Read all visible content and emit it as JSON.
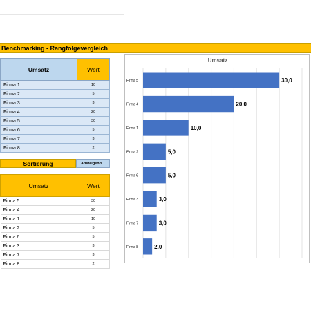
{
  "title": "Benchmarking - Rangfolgevergleich",
  "table1": {
    "header_name": "Umsatz",
    "header_value": "Wert",
    "rows": [
      {
        "name": "Firma 1",
        "value": "10"
      },
      {
        "name": "Firma 2",
        "value": "5"
      },
      {
        "name": "Firma 3",
        "value": "3"
      },
      {
        "name": "Firma 4",
        "value": "20"
      },
      {
        "name": "Firma 5",
        "value": "30"
      },
      {
        "name": "Firma 6",
        "value": "5"
      },
      {
        "name": "Firma 7",
        "value": "3"
      },
      {
        "name": "Firma 8",
        "value": "2"
      }
    ]
  },
  "sort": {
    "label": "Sortierung",
    "value": "Absteigend"
  },
  "table2": {
    "header_name": "Umsatz",
    "header_value": "Wert",
    "rows": [
      {
        "name": "Firma 5",
        "value": "30"
      },
      {
        "name": "Firma 4",
        "value": "20"
      },
      {
        "name": "Firma 1",
        "value": "10"
      },
      {
        "name": "Firma 2",
        "value": "5"
      },
      {
        "name": "Firma 6",
        "value": "5"
      },
      {
        "name": "Firma 3",
        "value": "3"
      },
      {
        "name": "Firma 7",
        "value": "3"
      },
      {
        "name": "Firma 8",
        "value": "2"
      }
    ]
  },
  "colors": {
    "accent": "#ffc000",
    "header_blue": "#bdd7ee",
    "row_blue": "#dbe8f6",
    "bar": "#4472c4"
  },
  "chart_data": {
    "type": "bar",
    "orientation": "horizontal",
    "title": "Umsatz",
    "categories": [
      "Firma 5",
      "Firma 4",
      "Firma 1",
      "Firma 2",
      "Firma 6",
      "Firma 3",
      "Firma 7",
      "Firma 8"
    ],
    "values": [
      30,
      20,
      10,
      5,
      5,
      3,
      3,
      2
    ],
    "data_labels": [
      "30,0",
      "20,0",
      "10,0",
      "5,0",
      "5,0",
      "3,0",
      "3,0",
      "2,0"
    ],
    "xlim": [
      0,
      35
    ],
    "grid": true
  }
}
